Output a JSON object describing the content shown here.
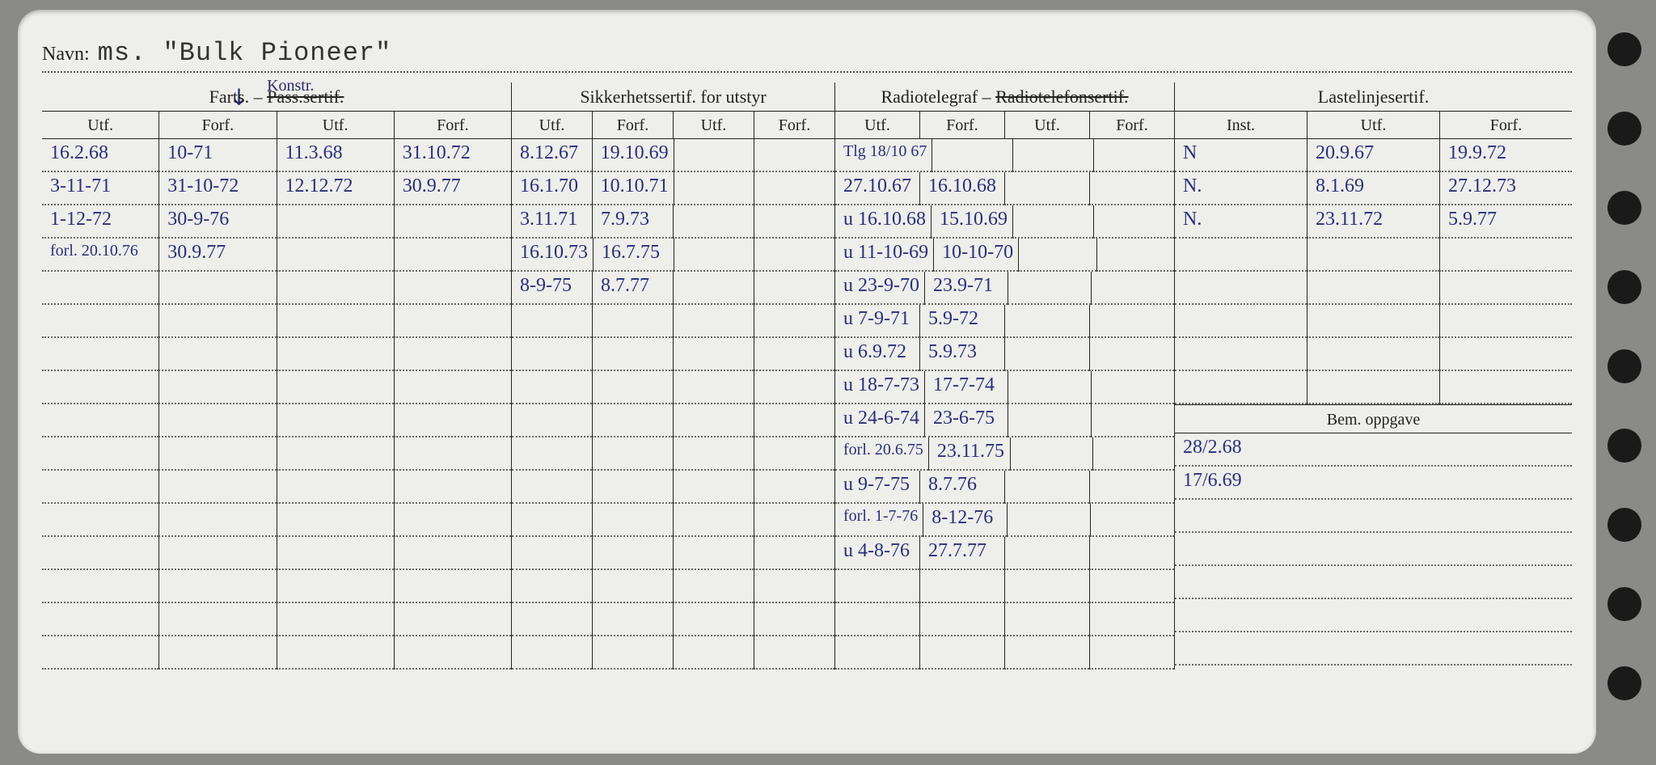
{
  "name_label": "Navn:",
  "name_value": "ms. \"Bulk Pioneer\"",
  "sections": {
    "farts": {
      "title_left": "Farts. –",
      "title_strike": "Pass.sertif.",
      "title_handwritten": "Konstr.",
      "cols": [
        "Utf.",
        "Forf.",
        "Utf.",
        "Forf."
      ]
    },
    "sikk": {
      "title": "Sikkerhetssertif. for utstyr",
      "cols": [
        "Utf.",
        "Forf.",
        "Utf.",
        "Forf."
      ]
    },
    "radio": {
      "title_left": "Radiotelegraf –",
      "title_strike": "Radiotelefonsertif.",
      "cols": [
        "Utf.",
        "Forf.",
        "Utf.",
        "Forf."
      ]
    },
    "laste": {
      "title": "Lastelinjesertif.",
      "cols": [
        "Inst.",
        "Utf.",
        "Forf."
      ]
    }
  },
  "bem_label": "Bem. oppgave",
  "farts_rows": [
    [
      "16.2.68",
      "10-71",
      "11.3.68",
      "31.10.72"
    ],
    [
      "3-11-71",
      "31-10-72",
      "12.12.72",
      "30.9.77"
    ],
    [
      "1-12-72",
      "30-9-76",
      "",
      ""
    ],
    [
      "forl. 20.10.76",
      "30.9.77",
      "",
      ""
    ],
    [
      "",
      "",
      "",
      ""
    ],
    [
      "",
      "",
      "",
      ""
    ],
    [
      "",
      "",
      "",
      ""
    ],
    [
      "",
      "",
      "",
      ""
    ],
    [
      "",
      "",
      "",
      ""
    ],
    [
      "",
      "",
      "",
      ""
    ],
    [
      "",
      "",
      "",
      ""
    ],
    [
      "",
      "",
      "",
      ""
    ],
    [
      "",
      "",
      "",
      ""
    ],
    [
      "",
      "",
      "",
      ""
    ],
    [
      "",
      "",
      "",
      ""
    ],
    [
      "",
      "",
      "",
      ""
    ]
  ],
  "sikk_rows": [
    [
      "8.12.67",
      "19.10.69",
      "",
      ""
    ],
    [
      "16.1.70",
      "10.10.71",
      "",
      ""
    ],
    [
      "3.11.71",
      "7.9.73",
      "",
      ""
    ],
    [
      "16.10.73",
      "16.7.75",
      "",
      ""
    ],
    [
      "8-9-75",
      "8.7.77",
      "",
      ""
    ],
    [
      "",
      "",
      "",
      ""
    ],
    [
      "",
      "",
      "",
      ""
    ],
    [
      "",
      "",
      "",
      ""
    ],
    [
      "",
      "",
      "",
      ""
    ],
    [
      "",
      "",
      "",
      ""
    ],
    [
      "",
      "",
      "",
      ""
    ],
    [
      "",
      "",
      "",
      ""
    ],
    [
      "",
      "",
      "",
      ""
    ],
    [
      "",
      "",
      "",
      ""
    ],
    [
      "",
      "",
      "",
      ""
    ],
    [
      "",
      "",
      "",
      ""
    ]
  ],
  "radio_rows": [
    [
      "Tlg 18/10 67",
      "",
      "",
      ""
    ],
    [
      "27.10.67",
      "16.10.68",
      "",
      ""
    ],
    [
      "u 16.10.68",
      "15.10.69",
      "",
      ""
    ],
    [
      "u 11-10-69",
      "10-10-70",
      "",
      ""
    ],
    [
      "u 23-9-70",
      "23.9-71",
      "",
      ""
    ],
    [
      "u 7-9-71",
      "5.9-72",
      "",
      ""
    ],
    [
      "u 6.9.72",
      "5.9.73",
      "",
      ""
    ],
    [
      "u 18-7-73",
      "17-7-74",
      "",
      ""
    ],
    [
      "u 24-6-74",
      "23-6-75",
      "",
      ""
    ],
    [
      "forl. 20.6.75",
      "23.11.75",
      "",
      ""
    ],
    [
      "u 9-7-75",
      "8.7.76",
      "",
      ""
    ],
    [
      "forl. 1-7-76",
      "8-12-76",
      "",
      ""
    ],
    [
      "u 4-8-76",
      "27.7.77",
      "",
      ""
    ],
    [
      "",
      "",
      "",
      ""
    ],
    [
      "",
      "",
      "",
      ""
    ],
    [
      "",
      "",
      "",
      ""
    ]
  ],
  "laste_rows": [
    [
      "N",
      "20.9.67",
      "19.9.72"
    ],
    [
      "N.",
      "8.1.69",
      "27.12.73"
    ],
    [
      "N.",
      "23.11.72",
      "5.9.77"
    ],
    [
      "",
      "",
      ""
    ],
    [
      "",
      "",
      ""
    ],
    [
      "",
      "",
      ""
    ],
    [
      "",
      "",
      ""
    ],
    [
      "",
      "",
      ""
    ]
  ],
  "bem_rows": [
    [
      "28/2.68"
    ],
    [
      "17/6.69"
    ],
    [
      ""
    ],
    [
      ""
    ],
    [
      ""
    ],
    [
      ""
    ],
    [
      ""
    ]
  ],
  "colors": {
    "paper": "#eeeeea",
    "ink_printed": "#222222",
    "ink_pen": "#2a2f7a",
    "background": "#8a8a88",
    "hole": "#1a1a1a",
    "dotted": "#666666"
  }
}
